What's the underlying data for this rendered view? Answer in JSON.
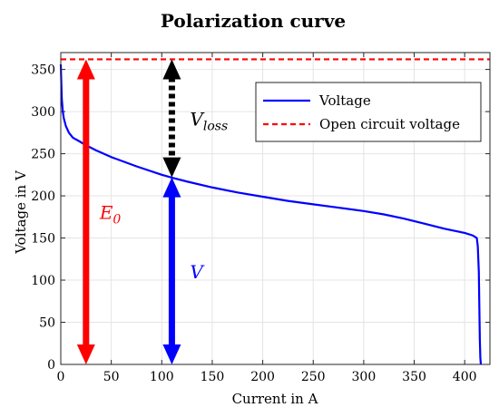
{
  "chart_data": {
    "type": "line",
    "title": "Polarization curve",
    "xlabel": "Current in A",
    "ylabel": "Voltage in V",
    "xlim": [
      0,
      425
    ],
    "ylim": [
      0,
      370
    ],
    "xticks": [
      0,
      50,
      100,
      150,
      200,
      250,
      300,
      350,
      400
    ],
    "yticks": [
      0,
      50,
      100,
      150,
      200,
      250,
      300,
      350
    ],
    "grid": true,
    "legend_position": "top-right",
    "series": [
      {
        "name": "Voltage",
        "color": "#0000ff",
        "style": "solid",
        "x": [
          0,
          0.5,
          1,
          2,
          3,
          5,
          8,
          12,
          18,
          25,
          35,
          50,
          75,
          100,
          112,
          125,
          150,
          175,
          200,
          225,
          250,
          275,
          300,
          320,
          340,
          360,
          380,
          400,
          408,
          412,
          413,
          414,
          414.5,
          415,
          415.5,
          416
        ],
        "y": [
          356,
          335,
          315,
          300,
          292,
          283,
          275,
          269,
          265,
          260,
          254,
          246,
          235,
          225,
          221,
          217,
          210,
          204,
          199,
          194,
          190,
          186,
          182,
          178,
          173,
          167,
          161,
          156,
          153,
          150,
          140,
          110,
          70,
          30,
          8,
          0
        ]
      },
      {
        "name": "Open circuit voltage",
        "color": "#ff0000",
        "style": "dashed",
        "x": [
          0,
          425
        ],
        "y": [
          362,
          362
        ]
      }
    ],
    "annotations": [
      {
        "label": "E",
        "sub": "0",
        "color": "#ff0000",
        "x": 25,
        "y_from": 0,
        "y_to": 362
      },
      {
        "label": "V",
        "sub": "loss",
        "color": "#000000",
        "x": 110,
        "y_from": 222,
        "y_to": 362
      },
      {
        "label": "V",
        "sub": "",
        "color": "#0000ff",
        "x": 110,
        "y_from": 0,
        "y_to": 222
      }
    ]
  }
}
